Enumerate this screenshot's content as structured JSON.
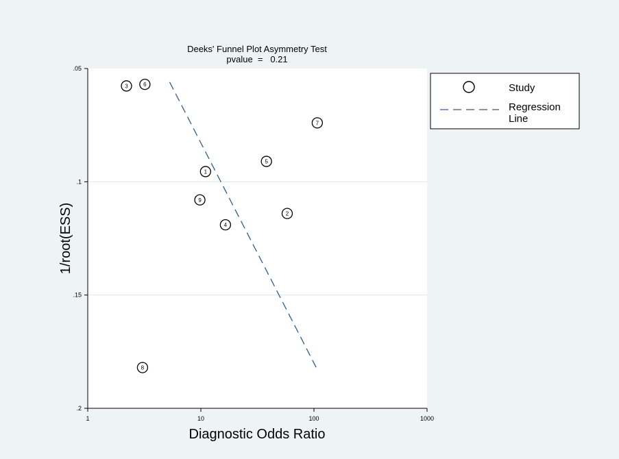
{
  "chart_data": {
    "type": "scatter",
    "title": "Deeks' Funnel Plot Asymmetry Test",
    "subtitle": "pvalue  =   0.21",
    "xlabel": "Diagnostic Odds Ratio",
    "ylabel": "1/root(ESS)",
    "x_scale": "log",
    "xlim": [
      1,
      1000
    ],
    "ylim": [
      0.2,
      0.05
    ],
    "y_reversed": true,
    "x_ticks": [
      1,
      10,
      100,
      1000
    ],
    "x_tick_labels": [
      "1",
      "10",
      "100",
      "1000"
    ],
    "y_ticks": [
      0.05,
      0.1,
      0.15,
      0.2
    ],
    "y_tick_labels": [
      ".05",
      ".1",
      ".15",
      ".2"
    ],
    "grid": "horizontal",
    "legend_position": "right",
    "legend": {
      "study": "Study",
      "regression": "Regression\nLine"
    },
    "series": [
      {
        "name": "Study",
        "points": [
          {
            "label": "1",
            "x": 11.0,
            "y": 0.0955
          },
          {
            "label": "2",
            "x": 58.0,
            "y": 0.114
          },
          {
            "label": "3",
            "x": 2.2,
            "y": 0.0577
          },
          {
            "label": "4",
            "x": 16.5,
            "y": 0.119
          },
          {
            "label": "5",
            "x": 38.0,
            "y": 0.091
          },
          {
            "label": "6",
            "x": 3.2,
            "y": 0.057
          },
          {
            "label": "7",
            "x": 107.0,
            "y": 0.074
          },
          {
            "label": "8",
            "x": 3.05,
            "y": 0.182
          },
          {
            "label": "9",
            "x": 9.8,
            "y": 0.108
          }
        ]
      },
      {
        "name": "Regression Line",
        "style": "dashed",
        "points": [
          {
            "x": 5.3,
            "y": 0.056
          },
          {
            "x": 106.0,
            "y": 0.1825
          }
        ]
      }
    ],
    "colors": {
      "line": "#2e5b8a",
      "marker": "#000000",
      "plot_bg": "#ffffff",
      "page_bg": "#eef3f5",
      "grid": "#dce6ea"
    }
  }
}
